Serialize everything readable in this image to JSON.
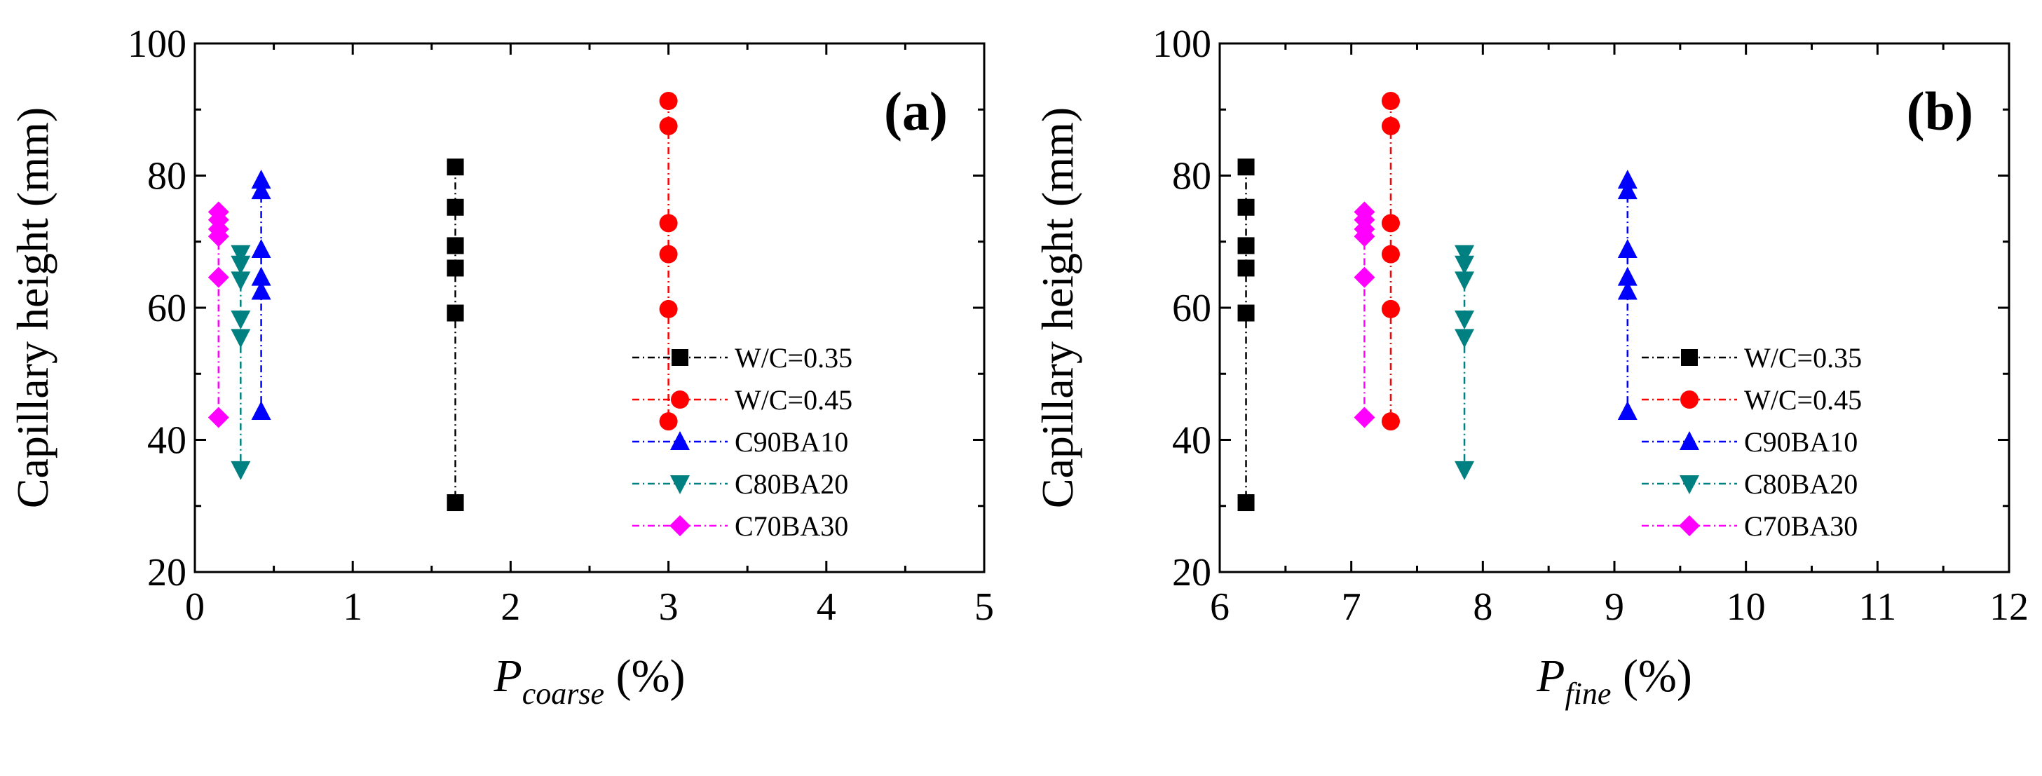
{
  "chart_data": [
    {
      "type": "line",
      "panel_label": "(a)",
      "ylabel": "Capillary height (mm)",
      "xlabel": {
        "var": "P",
        "sub": "coarse",
        "unit": " (%)"
      },
      "xlim": [
        0,
        5
      ],
      "ylim": [
        20,
        100
      ],
      "xticks": [
        0,
        1,
        2,
        3,
        4,
        5
      ],
      "yticks": [
        20,
        40,
        60,
        80,
        100
      ],
      "legend_position": "right",
      "series": [
        {
          "name": "W/C=0.35",
          "color": "#000000",
          "marker": "square",
          "x": [
            1.65,
            1.65,
            1.65,
            1.65,
            1.65,
            1.65
          ],
          "y": [
            30.5,
            59.2,
            66.0,
            69.4,
            75.2,
            81.3
          ]
        },
        {
          "name": "W/C=0.45",
          "color": "#ff0000",
          "marker": "circle",
          "x": [
            3.0,
            3.0,
            3.0,
            3.0,
            3.0,
            3.0
          ],
          "y": [
            42.8,
            59.8,
            68.1,
            72.8,
            87.5,
            91.3
          ]
        },
        {
          "name": "C90BA10",
          "color": "#0000ff",
          "marker": "triangle-up",
          "x": [
            0.42,
            0.42,
            0.42,
            0.42,
            0.42,
            0.42
          ],
          "y": [
            44.3,
            62.5,
            64.6,
            68.8,
            77.7,
            79.3
          ]
        },
        {
          "name": "C80BA20",
          "color": "#008080",
          "marker": "triangle-down",
          "x": [
            0.29,
            0.29,
            0.29,
            0.29,
            0.29,
            0.29
          ],
          "y": [
            35.5,
            55.5,
            58.3,
            64.2,
            66.6,
            68.2
          ]
        },
        {
          "name": "C70BA30",
          "color": "#ff00ff",
          "marker": "diamond",
          "x": [
            0.15,
            0.15,
            0.15,
            0.15,
            0.15,
            0.15
          ],
          "y": [
            43.4,
            64.6,
            70.8,
            71.9,
            73.3,
            74.5
          ]
        }
      ]
    },
    {
      "type": "line",
      "panel_label": "(b)",
      "ylabel": "Capillary height (mm)",
      "xlabel": {
        "var": "P",
        "sub": "fine",
        "unit": " (%)"
      },
      "xlim": [
        6,
        12
      ],
      "ylim": [
        20,
        100
      ],
      "xticks": [
        6,
        7,
        8,
        9,
        10,
        11,
        12
      ],
      "yticks": [
        20,
        40,
        60,
        80,
        100
      ],
      "legend_position": "right",
      "series": [
        {
          "name": "W/C=0.35",
          "color": "#000000",
          "marker": "square",
          "x": [
            6.2,
            6.2,
            6.2,
            6.2,
            6.2,
            6.2
          ],
          "y": [
            30.5,
            59.2,
            66.0,
            69.4,
            75.2,
            81.3
          ]
        },
        {
          "name": "W/C=0.45",
          "color": "#ff0000",
          "marker": "circle",
          "x": [
            7.3,
            7.3,
            7.3,
            7.3,
            7.3,
            7.3
          ],
          "y": [
            42.8,
            59.8,
            68.1,
            72.8,
            87.5,
            91.3
          ]
        },
        {
          "name": "C90BA10",
          "color": "#0000ff",
          "marker": "triangle-up",
          "x": [
            9.1,
            9.1,
            9.1,
            9.1,
            9.1,
            9.1
          ],
          "y": [
            44.3,
            62.5,
            64.6,
            68.8,
            77.7,
            79.3
          ]
        },
        {
          "name": "C80BA20",
          "color": "#008080",
          "marker": "triangle-down",
          "x": [
            7.86,
            7.86,
            7.86,
            7.86,
            7.86,
            7.86
          ],
          "y": [
            35.5,
            55.5,
            58.3,
            64.2,
            66.6,
            68.2
          ]
        },
        {
          "name": "C70BA30",
          "color": "#ff00ff",
          "marker": "diamond",
          "x": [
            7.1,
            7.1,
            7.1,
            7.1,
            7.1,
            7.1
          ],
          "y": [
            43.4,
            64.6,
            70.8,
            71.9,
            73.3,
            74.5
          ]
        }
      ]
    }
  ]
}
